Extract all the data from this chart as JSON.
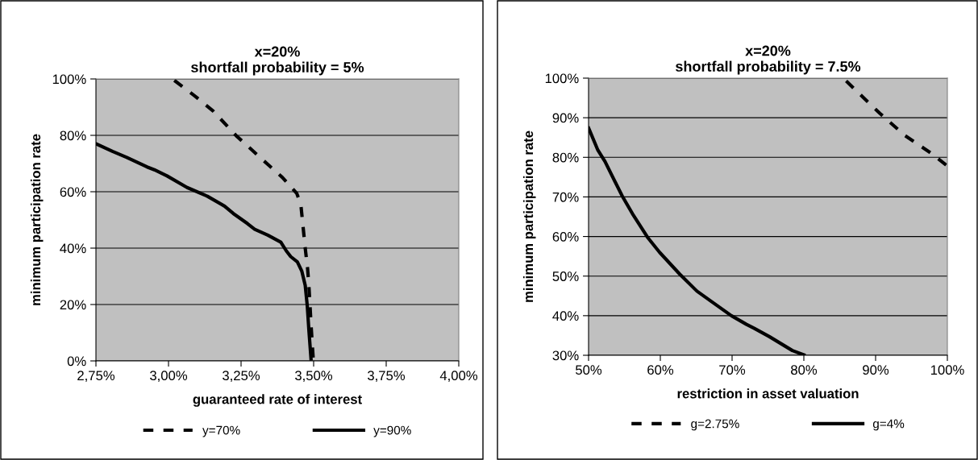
{
  "chart_data": [
    {
      "type": "line",
      "title": "x=20%\nshortfall probability = 5%",
      "xlabel": "guaranteed rate of interest",
      "ylabel": "minimum participation rate",
      "xlim": [
        2.75,
        4.0
      ],
      "xticks": [
        {
          "value": 2.75,
          "label": "2,75%"
        },
        {
          "value": 3.0,
          "label": "3,00%"
        },
        {
          "value": 3.25,
          "label": "3,25%"
        },
        {
          "value": 3.5,
          "label": "3,50%"
        },
        {
          "value": 3.75,
          "label": "3,75%"
        },
        {
          "value": 4.0,
          "label": "4,00%"
        }
      ],
      "ylim": [
        0,
        100
      ],
      "yticks": [
        {
          "value": 0,
          "label": "0%"
        },
        {
          "value": 20,
          "label": "20%"
        },
        {
          "value": 40,
          "label": "40%"
        },
        {
          "value": 60,
          "label": "60%"
        },
        {
          "value": 80,
          "label": "80%"
        },
        {
          "value": 100,
          "label": "100%"
        }
      ],
      "grid": "y",
      "legend": "bottom",
      "series": [
        {
          "name": "y=70%",
          "color": "#000000",
          "line_style": "dashed",
          "x": [
            3.02,
            3.094,
            3.154,
            3.233,
            3.293,
            3.342,
            3.392,
            3.442,
            3.456,
            3.463,
            3.471,
            3.479,
            3.483,
            3.487,
            3.491,
            3.496,
            3.499
          ],
          "values": [
            99.5,
            93.7,
            88.6,
            79.9,
            74.3,
            69.7,
            65.1,
            59.4,
            55.4,
            48.2,
            40.0,
            32.9,
            27.8,
            20.6,
            13.0,
            4.8,
            0.2
          ]
        },
        {
          "name": "y=90%",
          "color": "#000000",
          "line_style": "solid",
          "x": [
            2.75,
            2.807,
            2.856,
            2.926,
            2.951,
            2.995,
            3.064,
            3.134,
            3.193,
            3.223,
            3.272,
            3.297,
            3.342,
            3.387,
            3.406,
            3.421,
            3.444,
            3.459,
            3.471,
            3.478,
            3.484,
            3.491
          ],
          "values": [
            77.0,
            74.3,
            72.2,
            68.8,
            67.8,
            65.6,
            61.5,
            58.4,
            54.9,
            52.3,
            48.7,
            46.7,
            44.6,
            42.1,
            39.0,
            37.0,
            35.1,
            31.9,
            26.8,
            19.6,
            10.4,
            0.7
          ]
        }
      ]
    },
    {
      "type": "line",
      "title": "x=20%\nshortfall probability = 7.5%",
      "xlabel": "restriction in asset valuation",
      "ylabel": "minimum participation rate",
      "xlim": [
        50,
        100
      ],
      "xticks": [
        {
          "value": 50,
          "label": "50%"
        },
        {
          "value": 60,
          "label": "60%"
        },
        {
          "value": 70,
          "label": "70%"
        },
        {
          "value": 80,
          "label": "80%"
        },
        {
          "value": 90,
          "label": "90%"
        },
        {
          "value": 100,
          "label": "100%"
        }
      ],
      "ylim": [
        30,
        100
      ],
      "yticks": [
        {
          "value": 30,
          "label": "30%"
        },
        {
          "value": 40,
          "label": "40%"
        },
        {
          "value": 50,
          "label": "50%"
        },
        {
          "value": 60,
          "label": "60%"
        },
        {
          "value": 70,
          "label": "70%"
        },
        {
          "value": 80,
          "label": "80%"
        },
        {
          "value": 90,
          "label": "90%"
        },
        {
          "value": 100,
          "label": "100%"
        }
      ],
      "grid": "y",
      "legend": "bottom",
      "series": [
        {
          "name": "g=2.75%",
          "color": "#000000",
          "line_style": "dashed",
          "x": [
            85.9,
            88.4,
            90.6,
            94.1,
            97.7,
            100
          ],
          "values": [
            99.3,
            94.9,
            91.1,
            85.5,
            81.1,
            77.8
          ]
        },
        {
          "name": "g=4%",
          "color": "#000000",
          "line_style": "solid",
          "x": [
            50,
            51.3,
            52.3,
            53.7,
            54.7,
            56.1,
            58.3,
            59.9,
            62.7,
            65.1,
            67.1,
            69.9,
            72.0,
            73.1,
            75.2,
            78.4,
            80.0
          ],
          "values": [
            87.4,
            81.8,
            78.9,
            73.8,
            70.2,
            65.8,
            59.6,
            56.0,
            50.5,
            46.2,
            43.6,
            40.0,
            37.8,
            36.8,
            34.7,
            31.2,
            30.1
          ]
        }
      ]
    }
  ]
}
